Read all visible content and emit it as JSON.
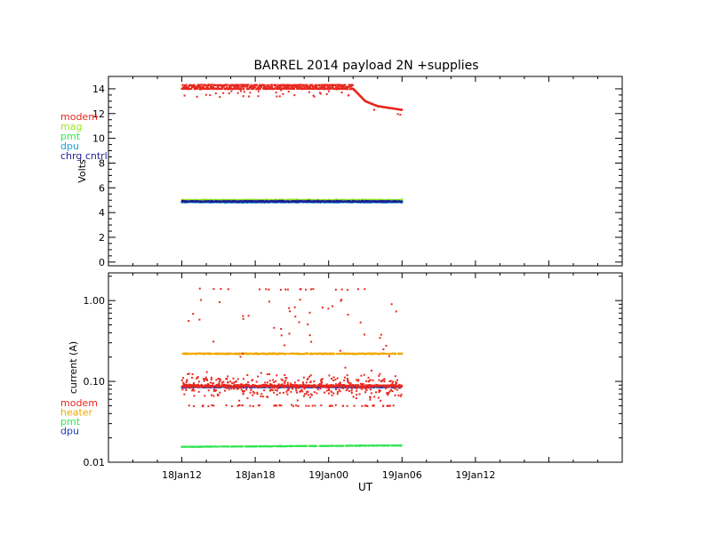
{
  "title": "BARREL 2014 payload 2N +supplies",
  "chart_data": [
    {
      "type": "scatter",
      "title": "BARREL 2014 payload 2N +supplies",
      "xlabel": "",
      "ylabel": "Volts",
      "xlim": [
        "18Jan06",
        "20Jan00"
      ],
      "ylim": [
        -0.3,
        15
      ],
      "yscale": "linear",
      "yticks": [
        {
          "value": 0,
          "label": "0"
        },
        {
          "value": 2,
          "label": "2"
        },
        {
          "value": 4,
          "label": "4"
        },
        {
          "value": 6,
          "label": "6"
        },
        {
          "value": 8,
          "label": "8"
        },
        {
          "value": 10,
          "label": "10"
        },
        {
          "value": 12,
          "label": "12"
        },
        {
          "value": 14,
          "label": "14"
        }
      ],
      "legend": {
        "placement": "left-outside",
        "entries": [
          {
            "name": "modem",
            "color": "#e8281e"
          },
          {
            "name": "mag",
            "color": "#9ae61e"
          },
          {
            "name": "pmt",
            "color": "#32e650"
          },
          {
            "name": "dpu",
            "color": "#1ea0d2"
          },
          {
            "name": "chrg cntrl",
            "color": "#1e1e96"
          }
        ]
      },
      "time_range": [
        "18Jan12",
        "19Jan06"
      ],
      "series": [
        {
          "name": "modem",
          "color": "#e8281e",
          "profile": [
            {
              "t": "18Jan12",
              "v": 14.1
            },
            {
              "t": "19Jan00",
              "v": 14.1
            },
            {
              "t": "19Jan02",
              "v": 14.1
            },
            {
              "t": "19Jan02",
              "v": 14.0
            },
            {
              "t": "19Jan03",
              "v": 13.0
            },
            {
              "t": "19Jan04",
              "v": 12.6
            },
            {
              "t": "19Jan06",
              "v": 12.3
            }
          ]
        },
        {
          "name": "mag",
          "color": "#9ae61e",
          "profile": [
            {
              "t": "18Jan12",
              "v": 5.0
            },
            {
              "t": "19Jan06",
              "v": 5.0
            }
          ]
        },
        {
          "name": "pmt",
          "color": "#32e650",
          "profile": [
            {
              "t": "18Jan12",
              "v": 4.9
            },
            {
              "t": "19Jan06",
              "v": 4.9
            }
          ]
        },
        {
          "name": "dpu",
          "color": "#1ea0d2",
          "profile": [
            {
              "t": "18Jan12",
              "v": 4.85
            },
            {
              "t": "19Jan06",
              "v": 4.85
            }
          ]
        },
        {
          "name": "chrg cntrl",
          "color": "#1e1e96",
          "profile": [
            {
              "t": "18Jan12",
              "v": 4.9
            },
            {
              "t": "19Jan06",
              "v": 4.9
            }
          ]
        }
      ]
    },
    {
      "type": "scatter",
      "title": "",
      "xlabel": "UT",
      "ylabel": "current (A)",
      "xlim": [
        "18Jan06",
        "20Jan00"
      ],
      "ylim": [
        0.01,
        2.2
      ],
      "yscale": "log",
      "yticks": [
        {
          "value": 0.01,
          "label": "0.01"
        },
        {
          "value": 0.1,
          "label": "0.10"
        },
        {
          "value": 1.0,
          "label": "1.00"
        }
      ],
      "xticks": [
        {
          "t": "18Jan12",
          "label": "18Jan12"
        },
        {
          "t": "18Jan18",
          "label": "18Jan18"
        },
        {
          "t": "19Jan00",
          "label": "19Jan00"
        },
        {
          "t": "19Jan06",
          "label": "19Jan06"
        },
        {
          "t": "19Jan12",
          "label": "19Jan12"
        }
      ],
      "legend": {
        "placement": "left-outside",
        "entries": [
          {
            "name": "modem",
            "color": "#e8281e"
          },
          {
            "name": "heater",
            "color": "#f0a800"
          },
          {
            "name": "pmt",
            "color": "#32e650"
          },
          {
            "name": "dpu",
            "color": "#1e3cb4"
          }
        ]
      },
      "time_range": [
        "18Jan12",
        "19Jan06"
      ],
      "series": [
        {
          "name": "modem",
          "color": "#e8281e",
          "typical": 0.088,
          "low_level": 0.05,
          "high_level": 1.38
        },
        {
          "name": "heater",
          "color": "#f0a800",
          "typical": 0.22
        },
        {
          "name": "pmt",
          "color": "#32e650",
          "typical": 0.0155
        },
        {
          "name": "dpu",
          "color": "#1e3cb4",
          "typical": 0.085
        }
      ]
    }
  ]
}
